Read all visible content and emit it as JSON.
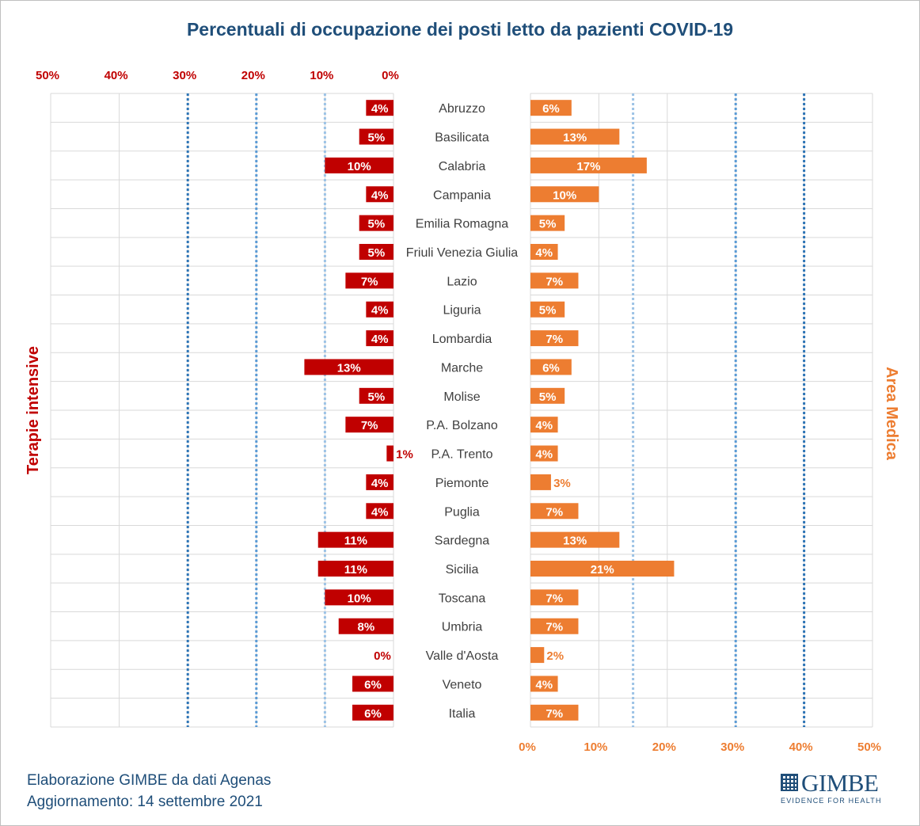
{
  "title": "Percentuali di occupazione dei posti letto da pazienti COVID-19",
  "footer": {
    "line1": "Elaborazione GIMBE da dati Agenas",
    "line2": "Aggiornamento: 14 settembre 2021"
  },
  "logo": {
    "name": "GIMBE",
    "tagline": "EVIDENCE FOR HEALTH"
  },
  "colors": {
    "title": "#1f4e79",
    "left_series": "#c00000",
    "right_series": "#ed7d31",
    "grid": "#d9d9d9",
    "light_dotted": "#9dc3e6",
    "mid_dotted": "#5b9bd5",
    "dark_dotted": "#2e75b6"
  },
  "chart_data": {
    "type": "bar",
    "orientation": "horizontal-butterfly",
    "categories": [
      "Abruzzo",
      "Basilicata",
      "Calabria",
      "Campania",
      "Emilia Romagna",
      "Friuli Venezia Giulia",
      "Lazio",
      "Liguria",
      "Lombardia",
      "Marche",
      "Molise",
      "P.A. Bolzano",
      "P.A. Trento",
      "Piemonte",
      "Puglia",
      "Sardegna",
      "Sicilia",
      "Toscana",
      "Umbria",
      "Valle d'Aosta",
      "Veneto",
      "Italia"
    ],
    "series": [
      {
        "name": "Terapie intensive",
        "side": "left",
        "values": [
          4,
          5,
          10,
          4,
          5,
          5,
          7,
          4,
          4,
          13,
          5,
          7,
          1,
          4,
          4,
          11,
          11,
          10,
          8,
          0,
          6,
          6
        ]
      },
      {
        "name": "Area Medica",
        "side": "right",
        "values": [
          6,
          13,
          17,
          10,
          5,
          4,
          7,
          5,
          7,
          6,
          5,
          4,
          4,
          3,
          7,
          13,
          21,
          7,
          7,
          2,
          4,
          7
        ]
      }
    ],
    "left_axis": {
      "ticks": [
        "50%",
        "40%",
        "30%",
        "20%",
        "10%",
        "0%"
      ],
      "range": [
        0,
        50
      ]
    },
    "right_axis": {
      "ticks": [
        "0%",
        "10%",
        "20%",
        "30%",
        "40%",
        "50%"
      ],
      "range": [
        0,
        50
      ]
    },
    "reference_lines": {
      "left": [
        {
          "value": 10,
          "style": "light"
        },
        {
          "value": 20,
          "style": "mid"
        },
        {
          "value": 30,
          "style": "dark"
        }
      ],
      "right": [
        {
          "value": 15,
          "style": "light"
        },
        {
          "value": 30,
          "style": "mid"
        },
        {
          "value": 40,
          "style": "dark"
        }
      ]
    },
    "grid": true
  }
}
